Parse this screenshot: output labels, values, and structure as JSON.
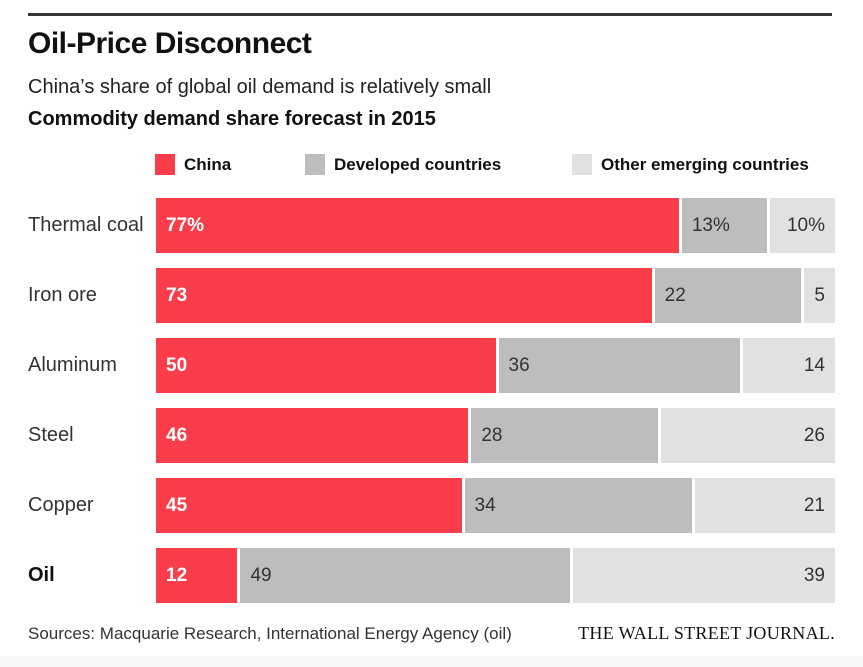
{
  "header": {
    "title": "Oil-Price Disconnect",
    "subtitle": "China’s share of global oil demand is relatively small",
    "chart_heading": "Commodity demand share forecast in 2015"
  },
  "legend": {
    "items": [
      {
        "key": "china",
        "label": "China",
        "color": "#fa3d4a"
      },
      {
        "key": "developed-countries",
        "label": "Developed countries",
        "color": "#bdbdbd"
      },
      {
        "key": "other-emerging-countries",
        "label": "Other emerging countries",
        "color": "#e1e1e1"
      }
    ]
  },
  "chart_data": {
    "type": "bar",
    "orientation": "horizontal",
    "stacked": true,
    "title": "Commodity demand share forecast in 2015",
    "categories": [
      "Thermal coal",
      "Iron ore",
      "Aluminum",
      "Steel",
      "Copper",
      "Oil"
    ],
    "series": [
      {
        "key": "china",
        "name": "China",
        "color": "#fa3d4a",
        "values": [
          77,
          73,
          50,
          46,
          45,
          12
        ]
      },
      {
        "key": "developed-countries",
        "name": "Developed countries",
        "color": "#bdbdbd",
        "values": [
          13,
          22,
          36,
          28,
          34,
          49
        ]
      },
      {
        "key": "other-emerging-countries",
        "name": "Other emerging countries",
        "color": "#e1e1e1",
        "values": [
          10,
          5,
          14,
          26,
          21,
          39
        ]
      }
    ],
    "display_labels": [
      [
        "77%",
        "13%",
        "10%"
      ],
      [
        "73",
        "22",
        "5"
      ],
      [
        "50",
        "36",
        "14"
      ],
      [
        "46",
        "28",
        "26"
      ],
      [
        "45",
        "34",
        "21"
      ],
      [
        "12",
        "49",
        "39"
      ]
    ],
    "unit": "%",
    "xlim": [
      0,
      100
    ],
    "grid": false,
    "legend_position": "top",
    "emphasized_category": "Oil"
  },
  "footer": {
    "sources": "Sources: Macquarie Research, International Energy Agency (oil)",
    "brand": "THE WALL STREET JOURNAL."
  }
}
